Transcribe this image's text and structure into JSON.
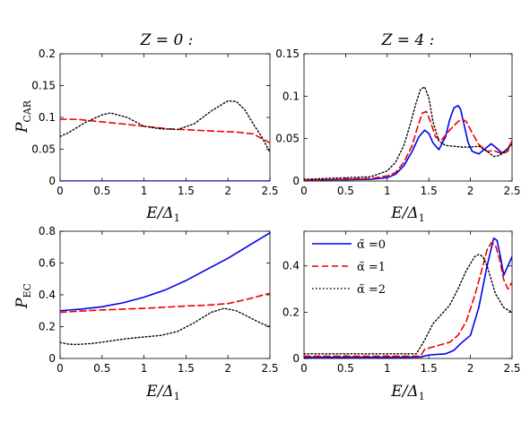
{
  "colors": {
    "alpha0": "#0000ee",
    "alpha1": "#ee0000",
    "alpha2": "#000000"
  },
  "column_titles": [
    "Z = 0 :",
    "Z = 4 :"
  ],
  "legend": [
    "α̃ =0",
    "α̃ =1",
    "α̃ =2"
  ],
  "chart_data": [
    {
      "type": "line",
      "title": "Z = 0 :",
      "xlabel": "E/Δ1",
      "ylabel": "PCAR",
      "xlim": [
        0,
        2.5
      ],
      "ylim": [
        0,
        0.2
      ],
      "xticks": [
        "0",
        "0.5",
        "1",
        "1.5",
        "2",
        "2.5"
      ],
      "yticks": [
        "0",
        "0.05",
        "0.1",
        "0.15",
        "0.2"
      ],
      "grid": false,
      "series": [
        {
          "style": "solid",
          "color": "#0000ee",
          "x": [
            0,
            2.5
          ],
          "y": [
            0,
            0
          ]
        },
        {
          "style": "dashed",
          "color": "#ee0000",
          "x": [
            0,
            0.2,
            0.5,
            0.8,
            1.0,
            1.3,
            1.6,
            1.9,
            2.1,
            2.3,
            2.4,
            2.5
          ],
          "y": [
            0.097,
            0.097,
            0.093,
            0.089,
            0.086,
            0.082,
            0.08,
            0.078,
            0.077,
            0.074,
            0.067,
            0.06
          ]
        },
        {
          "style": "dotted",
          "color": "#000000",
          "x": [
            0,
            0.1,
            0.3,
            0.5,
            0.6,
            0.8,
            1.0,
            1.2,
            1.4,
            1.6,
            1.8,
            2.0,
            2.1,
            2.2,
            2.3,
            2.4,
            2.5
          ],
          "y": [
            0.07,
            0.076,
            0.092,
            0.104,
            0.107,
            0.1,
            0.086,
            0.082,
            0.081,
            0.09,
            0.11,
            0.126,
            0.125,
            0.112,
            0.09,
            0.07,
            0.045
          ]
        }
      ]
    },
    {
      "type": "line",
      "title": "Z = 4 :",
      "xlabel": "E/Δ1",
      "ylabel": "",
      "xlim": [
        0,
        2.5
      ],
      "ylim": [
        0,
        0.15
      ],
      "xticks": [
        "0",
        "0.5",
        "1",
        "1.5",
        "2",
        "2.5"
      ],
      "yticks": [
        "0",
        "0.05",
        "0.1",
        "0.15"
      ],
      "grid": false,
      "series": [
        {
          "style": "solid",
          "color": "#0000ee",
          "x": [
            0,
            0.8,
            1.0,
            1.1,
            1.2,
            1.3,
            1.38,
            1.45,
            1.5,
            1.55,
            1.62,
            1.7,
            1.75,
            1.8,
            1.85,
            1.88,
            1.92,
            1.97,
            2.02,
            2.1,
            2.2,
            2.25,
            2.3,
            2.38,
            2.45,
            2.5
          ],
          "y": [
            0.001,
            0.002,
            0.004,
            0.008,
            0.018,
            0.035,
            0.052,
            0.06,
            0.056,
            0.045,
            0.037,
            0.052,
            0.072,
            0.086,
            0.089,
            0.085,
            0.068,
            0.046,
            0.035,
            0.032,
            0.04,
            0.044,
            0.04,
            0.033,
            0.038,
            0.047
          ]
        },
        {
          "style": "dashed",
          "color": "#ee0000",
          "x": [
            0,
            0.8,
            1.0,
            1.1,
            1.2,
            1.3,
            1.36,
            1.42,
            1.47,
            1.52,
            1.58,
            1.65,
            1.75,
            1.85,
            1.9,
            1.95,
            2.02,
            2.1,
            2.2,
            2.28,
            2.38,
            2.45,
            2.5
          ],
          "y": [
            0.001,
            0.003,
            0.006,
            0.01,
            0.022,
            0.042,
            0.062,
            0.08,
            0.082,
            0.07,
            0.052,
            0.048,
            0.06,
            0.07,
            0.073,
            0.07,
            0.057,
            0.043,
            0.035,
            0.036,
            0.032,
            0.035,
            0.048
          ]
        },
        {
          "style": "dotted",
          "color": "#000000",
          "x": [
            0,
            0.8,
            1.0,
            1.1,
            1.2,
            1.28,
            1.34,
            1.4,
            1.45,
            1.5,
            1.55,
            1.62,
            1.7,
            1.8,
            1.9,
            2.0,
            2.1,
            2.2,
            2.28,
            2.35,
            2.42,
            2.5
          ],
          "y": [
            0.002,
            0.005,
            0.012,
            0.022,
            0.042,
            0.068,
            0.09,
            0.108,
            0.111,
            0.098,
            0.07,
            0.047,
            0.042,
            0.041,
            0.04,
            0.04,
            0.041,
            0.035,
            0.029,
            0.03,
            0.036,
            0.043
          ]
        }
      ]
    },
    {
      "type": "line",
      "title": "",
      "xlabel": "E/Δ1",
      "ylabel": "PEC",
      "xlim": [
        0,
        2.5
      ],
      "ylim": [
        0,
        0.8
      ],
      "xticks": [
        "0",
        "0.5",
        "1",
        "1.5",
        "2",
        "2.5"
      ],
      "yticks": [
        "0",
        "0.2",
        "0.4",
        "0.6",
        "0.8"
      ],
      "grid": false,
      "series": [
        {
          "style": "solid",
          "color": "#0000ee",
          "x": [
            0,
            0.25,
            0.5,
            0.75,
            1.0,
            1.25,
            1.5,
            1.75,
            2.0,
            2.25,
            2.5
          ],
          "y": [
            0.3,
            0.31,
            0.325,
            0.35,
            0.385,
            0.43,
            0.49,
            0.56,
            0.63,
            0.71,
            0.79
          ]
        },
        {
          "style": "dashed",
          "color": "#ee0000",
          "x": [
            0,
            0.25,
            0.5,
            0.75,
            1.0,
            1.25,
            1.5,
            1.75,
            2.0,
            2.25,
            2.5
          ],
          "y": [
            0.29,
            0.298,
            0.305,
            0.31,
            0.315,
            0.322,
            0.33,
            0.335,
            0.345,
            0.375,
            0.41
          ]
        },
        {
          "style": "dotted",
          "color": "#000000",
          "x": [
            0,
            0.1,
            0.2,
            0.4,
            0.6,
            0.8,
            1.0,
            1.2,
            1.4,
            1.6,
            1.8,
            1.95,
            2.1,
            2.25,
            2.4,
            2.5
          ],
          "y": [
            0.1,
            0.09,
            0.088,
            0.095,
            0.11,
            0.125,
            0.135,
            0.145,
            0.17,
            0.225,
            0.29,
            0.315,
            0.3,
            0.26,
            0.22,
            0.2
          ]
        }
      ]
    },
    {
      "type": "line",
      "title": "",
      "xlabel": "E/Δ1",
      "ylabel": "",
      "xlim": [
        0,
        2.5
      ],
      "ylim": [
        0,
        0.55
      ],
      "xticks": [
        "0",
        "0.5",
        "1",
        "1.5",
        "2",
        "2.5"
      ],
      "yticks": [
        "0",
        "0.2",
        "0.4"
      ],
      "grid": false,
      "legend_position": "top-left",
      "series": [
        {
          "name": "α̃ =0",
          "style": "solid",
          "color": "#0000ee",
          "x": [
            0,
            1.2,
            1.4,
            1.5,
            1.7,
            1.8,
            1.9,
            2.0,
            2.1,
            2.2,
            2.28,
            2.32,
            2.36,
            2.4,
            2.45,
            2.5
          ],
          "y": [
            0.005,
            0.005,
            0.006,
            0.015,
            0.02,
            0.035,
            0.07,
            0.1,
            0.22,
            0.4,
            0.52,
            0.51,
            0.44,
            0.36,
            0.4,
            0.44
          ]
        },
        {
          "name": "α̃ =1",
          "style": "dashed",
          "color": "#ee0000",
          "x": [
            0,
            1.2,
            1.4,
            1.45,
            1.6,
            1.75,
            1.85,
            1.95,
            2.05,
            2.15,
            2.2,
            2.25,
            2.3,
            2.35,
            2.4,
            2.45,
            2.5
          ],
          "y": [
            0.01,
            0.01,
            0.01,
            0.04,
            0.055,
            0.07,
            0.1,
            0.16,
            0.27,
            0.4,
            0.47,
            0.5,
            0.49,
            0.43,
            0.34,
            0.3,
            0.33
          ]
        },
        {
          "name": "α̃ =2",
          "style": "dotted",
          "color": "#000000",
          "x": [
            0,
            1.2,
            1.35,
            1.45,
            1.55,
            1.65,
            1.75,
            1.85,
            1.95,
            2.05,
            2.1,
            2.15,
            2.2,
            2.3,
            2.4,
            2.5
          ],
          "y": [
            0.02,
            0.02,
            0.02,
            0.08,
            0.15,
            0.19,
            0.23,
            0.3,
            0.38,
            0.44,
            0.45,
            0.44,
            0.4,
            0.28,
            0.22,
            0.2
          ]
        }
      ]
    }
  ]
}
